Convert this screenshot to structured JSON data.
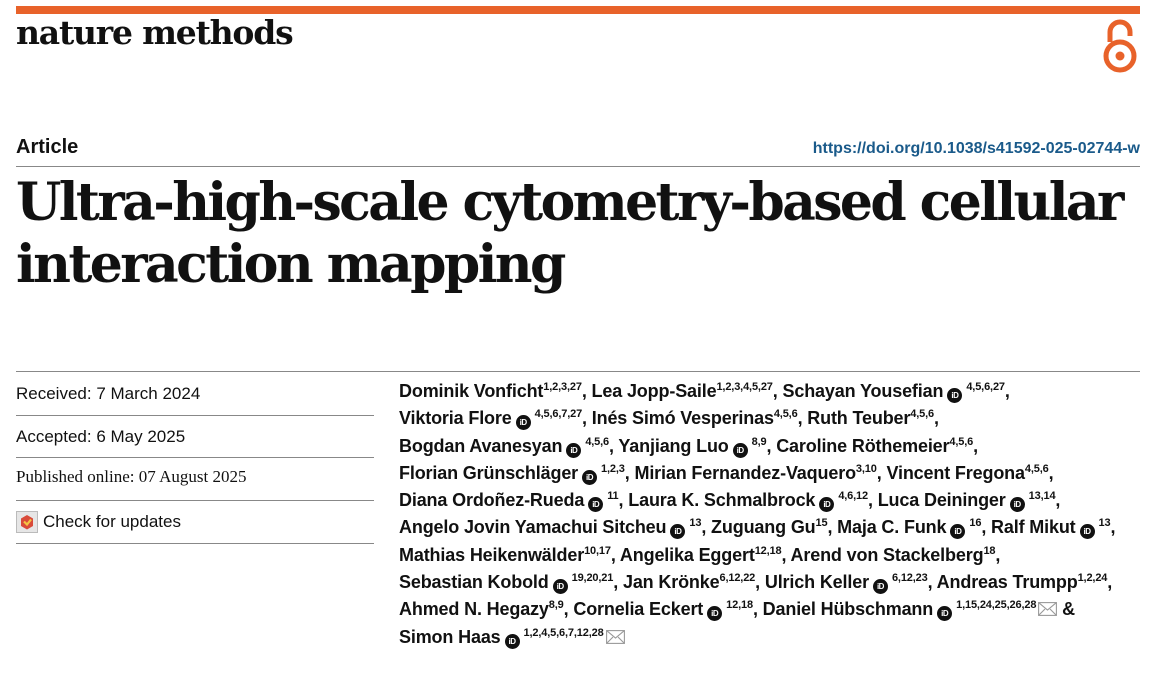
{
  "header": {
    "journal": "nature methods",
    "brand_color": "#e8622a",
    "open_access_icon": "open-access-lock-icon"
  },
  "article": {
    "type": "Article",
    "doi": "https://doi.org/10.1038/s41592-025-02744-w",
    "title": "Ultra-high-scale cytometry-based cellular interaction mapping"
  },
  "history": {
    "received": "Received: 7 March 2024",
    "accepted": "Accepted: 6 May 2025",
    "published": "Published online: 07 August 2025",
    "check_updates": "Check for updates"
  },
  "authors": [
    {
      "name": "Dominik Vonficht",
      "aff": "1,2,3,27",
      "orcid": false,
      "sep": ", "
    },
    {
      "name": "Lea Jopp-Saile",
      "aff": "1,2,3,4,5,27",
      "orcid": false,
      "sep": ", "
    },
    {
      "name": "Schayan Yousefian",
      "aff": "4,5,6,27",
      "orcid": true,
      "sep": ", "
    },
    {
      "name": "Viktoria Flore",
      "aff": "4,5,6,7,27",
      "orcid": true,
      "sep": ", "
    },
    {
      "name": "Inés Simó Vesperinas",
      "aff": "4,5,6",
      "orcid": false,
      "sep": ", "
    },
    {
      "name": "Ruth Teuber",
      "aff": "4,5,6",
      "orcid": false,
      "sep": ", "
    },
    {
      "name": "Bogdan Avanesyan",
      "aff": "4,5,6",
      "orcid": true,
      "sep": ", "
    },
    {
      "name": "Yanjiang Luo",
      "aff": "8,9",
      "orcid": true,
      "sep": ", "
    },
    {
      "name": "Caroline Röthemeier",
      "aff": "4,5,6",
      "orcid": false,
      "sep": ", "
    },
    {
      "name": "Florian Grünschläger",
      "aff": "1,2,3",
      "orcid": true,
      "sep": ", "
    },
    {
      "name": "Mirian Fernandez-Vaquero",
      "aff": "3,10",
      "orcid": false,
      "sep": ", "
    },
    {
      "name": "Vincent Fregona",
      "aff": "4,5,6",
      "orcid": false,
      "sep": ", "
    },
    {
      "name": "Diana Ordoñez-Rueda",
      "aff": "11",
      "orcid": true,
      "sep": ", "
    },
    {
      "name": "Laura K. Schmalbrock",
      "aff": "4,6,12",
      "orcid": true,
      "sep": ", "
    },
    {
      "name": "Luca Deininger",
      "aff": "13,14",
      "orcid": true,
      "sep": ", "
    },
    {
      "name": "Angelo Jovin Yamachui Sitcheu",
      "aff": "13",
      "orcid": true,
      "sep": ", "
    },
    {
      "name": "Zuguang Gu",
      "aff": "15",
      "orcid": false,
      "sep": ", "
    },
    {
      "name": "Maja C. Funk",
      "aff": "16",
      "orcid": true,
      "sep": ", "
    },
    {
      "name": "Ralf Mikut",
      "aff": "13",
      "orcid": true,
      "sep": ", "
    },
    {
      "name": "Mathias Heikenwälder",
      "aff": "10,17",
      "orcid": false,
      "sep": ", "
    },
    {
      "name": "Angelika Eggert",
      "aff": "12,18",
      "orcid": false,
      "sep": ", "
    },
    {
      "name": "Arend von Stackelberg",
      "aff": "18",
      "orcid": false,
      "sep": ", "
    },
    {
      "name": "Sebastian Kobold",
      "aff": "19,20,21",
      "orcid": true,
      "sep": ", "
    },
    {
      "name": "Jan Krönke",
      "aff": "6,12,22",
      "orcid": false,
      "sep": ", "
    },
    {
      "name": "Ulrich Keller",
      "aff": "6,12,23",
      "orcid": true,
      "sep": ", "
    },
    {
      "name": "Andreas Trumpp",
      "aff": "1,2,24",
      "orcid": false,
      "sep": ", "
    },
    {
      "name": "Ahmed N. Hegazy",
      "aff": "8,9",
      "orcid": false,
      "sep": ", "
    },
    {
      "name": "Cornelia Eckert",
      "aff": "12,18",
      "orcid": true,
      "sep": ", "
    },
    {
      "name": "Daniel Hübschmann",
      "aff": "1,15,24,25,26,28",
      "orcid": true,
      "mail": true,
      "sep": " & "
    },
    {
      "name": "Simon Haas",
      "aff": "1,2,4,5,6,7,12,28",
      "orcid": true,
      "mail": true,
      "sep": ""
    }
  ]
}
